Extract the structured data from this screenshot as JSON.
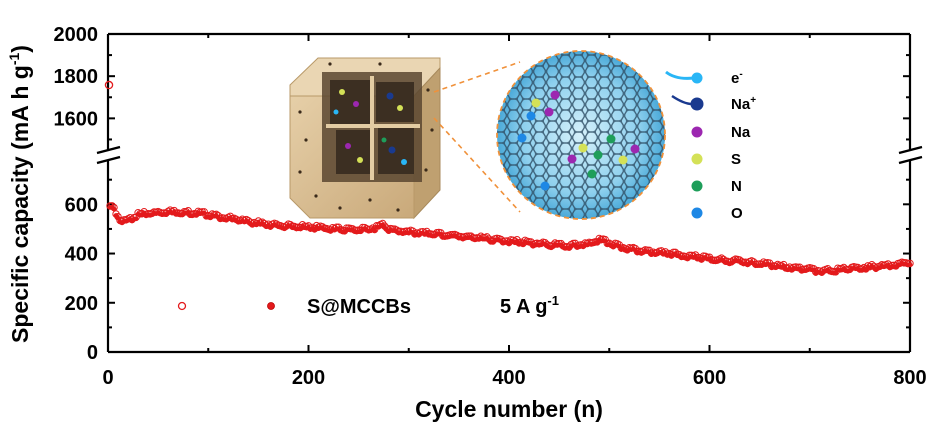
{
  "chart_data": {
    "type": "scatter",
    "xlabel": "Cycle number (n)",
    "ylabel": "Specific capacity (mA h g",
    "ylabel_sup": "-1",
    "ylabel_close": ")",
    "xlim": [
      0,
      800
    ],
    "ylim_lower": [
      0,
      780
    ],
    "ylim_upper": [
      1450,
      2000
    ],
    "broken_y_axis": true,
    "grid": false,
    "x_tick_labels": [
      "0",
      "200",
      "400",
      "600",
      "800"
    ],
    "y_tick_labels_lower": [
      "0",
      "200",
      "400",
      "600"
    ],
    "y_tick_labels_upper": [
      "1600",
      "1800",
      "2000"
    ],
    "series": [
      {
        "name": "S@MCCBs",
        "marker": "circle",
        "color": "#e31a1c",
        "first_point": {
          "x": 1,
          "y": 1758
        },
        "x": [
          0,
          5,
          10,
          15,
          20,
          25,
          30,
          40,
          50,
          60,
          70,
          80,
          90,
          100,
          110,
          120,
          130,
          140,
          150,
          160,
          170,
          180,
          190,
          200,
          210,
          220,
          230,
          240,
          250,
          260,
          270,
          275,
          280,
          290,
          300,
          320,
          340,
          360,
          380,
          400,
          420,
          440,
          460,
          480,
          490,
          500,
          510,
          520,
          540,
          560,
          580,
          600,
          620,
          640,
          660,
          680,
          700,
          710,
          720,
          730,
          740,
          750,
          760,
          770,
          780,
          790,
          800
        ],
        "y": [
          595,
          590,
          550,
          528,
          535,
          548,
          558,
          565,
          568,
          570,
          570,
          568,
          565,
          560,
          552,
          545,
          538,
          530,
          525,
          520,
          515,
          512,
          510,
          508,
          505,
          502,
          500,
          498,
          497,
          500,
          510,
          520,
          500,
          492,
          488,
          482,
          475,
          468,
          460,
          452,
          445,
          438,
          432,
          440,
          455,
          445,
          428,
          420,
          410,
          400,
          390,
          380,
          372,
          365,
          355,
          345,
          335,
          330,
          332,
          335,
          338,
          342,
          346,
          350,
          355,
          360,
          368
        ]
      }
    ],
    "legend": {
      "series_label": "S@MCCBs",
      "current_density": "5 A g",
      "current_density_sup": "-1",
      "placement": "bottom-left"
    },
    "inset_key": [
      {
        "label": "e",
        "sup": "-",
        "icon": "electron-icon",
        "color": "#29b6f6"
      },
      {
        "label": "Na",
        "sup": "+",
        "icon": "sodium-ion-icon",
        "color": "#1a3a8f"
      },
      {
        "label": "Na",
        "sup": "",
        "icon": "sodium-atom-icon",
        "color": "#9c27b0"
      },
      {
        "label": "S",
        "sup": "",
        "icon": "sulfur-atom-icon",
        "color": "#d4e157"
      },
      {
        "label": "N",
        "sup": "",
        "icon": "nitrogen-atom-icon",
        "color": "#1e9e5a"
      },
      {
        "label": "O",
        "sup": "",
        "icon": "oxygen-atom-icon",
        "color": "#1e88e5"
      }
    ]
  }
}
